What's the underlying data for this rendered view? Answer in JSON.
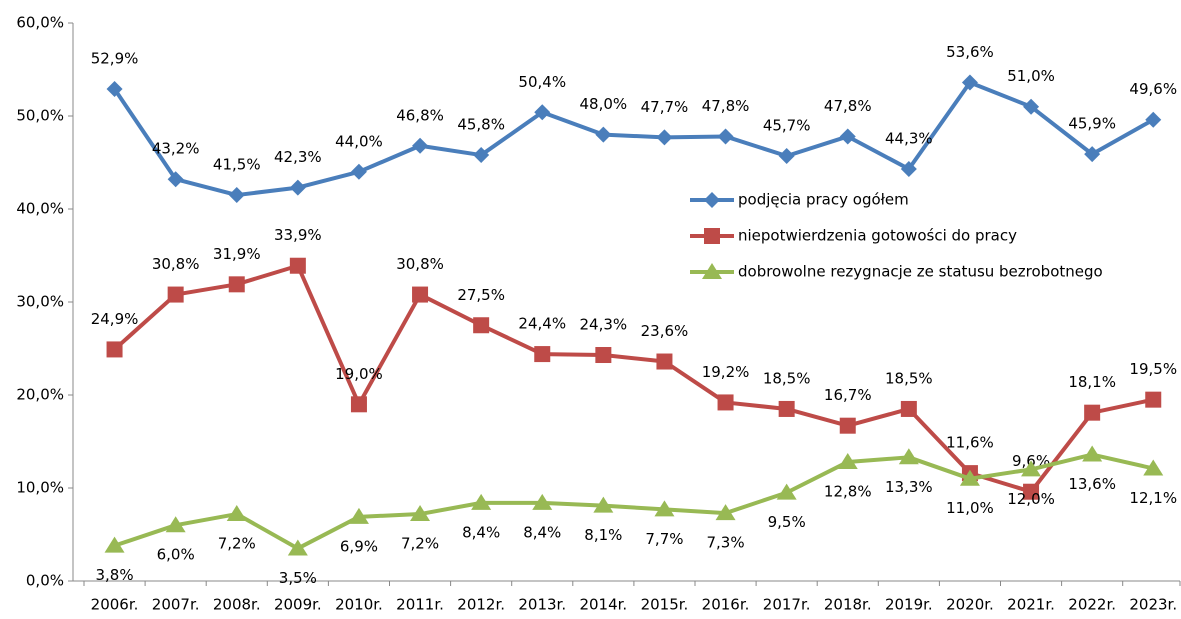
{
  "chart_data": {
    "type": "line",
    "categories": [
      "2006r.",
      "2007r.",
      "2008r.",
      "2009r.",
      "2010r.",
      "2011r.",
      "2012r.",
      "2013r.",
      "2014r.",
      "2015r.",
      "2016r.",
      "2017r.",
      "2018r.",
      "2019r.",
      "2020r.",
      "2021r.",
      "2022r.",
      "2023r."
    ],
    "series": [
      {
        "name": "podjęcia pracy ogółem",
        "color": "#4a7ebb",
        "marker": "diamond",
        "values": [
          52.9,
          43.2,
          41.5,
          42.3,
          44.0,
          46.8,
          45.8,
          50.4,
          48.0,
          47.7,
          47.8,
          45.7,
          47.8,
          44.3,
          53.6,
          51.0,
          45.9,
          49.6
        ],
        "value_labels": [
          "52,9%",
          "43,2%",
          "41,5%",
          "42,3%",
          "44,0%",
          "46,8%",
          "45,8%",
          "50,4%",
          "48,0%",
          "47,7%",
          "47,8%",
          "45,7%",
          "47,8%",
          "44,3%",
          "53,6%",
          "51,0%",
          "45,9%",
          "49,6%"
        ]
      },
      {
        "name": "niepotwierdzenia gotowości do pracy",
        "color": "#be4b48",
        "marker": "square",
        "values": [
          24.9,
          30.8,
          31.9,
          33.9,
          19.0,
          30.8,
          27.5,
          24.4,
          24.3,
          23.6,
          19.2,
          18.5,
          16.7,
          18.5,
          11.6,
          9.6,
          18.1,
          19.5
        ],
        "value_labels": [
          "24,9%",
          "30,8%",
          "31,9%",
          "33,9%",
          "19,0%",
          "30,8%",
          "27,5%",
          "24,4%",
          "24,3%",
          "23,6%",
          "19,2%",
          "18,5%",
          "16,7%",
          "18,5%",
          "11,6%",
          "9,6%",
          "18,1%",
          "19,5%"
        ]
      },
      {
        "name": "dobrowolne rezygnacje ze statusu bezrobotnego",
        "color": "#98b954",
        "marker": "triangle",
        "values": [
          3.8,
          6.0,
          7.2,
          3.5,
          6.9,
          7.2,
          8.4,
          8.4,
          8.1,
          7.7,
          7.3,
          9.5,
          12.8,
          13.3,
          11.0,
          12.0,
          13.6,
          12.1
        ],
        "value_labels": [
          "3,8%",
          "6,0%",
          "7,2%",
          "3,5%",
          "6,9%",
          "7,2%",
          "8,4%",
          "8,4%",
          "8,1%",
          "7,7%",
          "7,3%",
          "9,5%",
          "12,8%",
          "13,3%",
          "11,0%",
          "12,0%",
          "13,6%",
          "12,1%"
        ]
      }
    ],
    "ylim": [
      0,
      60
    ],
    "yticks": [
      {
        "value": 0,
        "label": "0,0%"
      },
      {
        "value": 10,
        "label": "10,0%"
      },
      {
        "value": 20,
        "label": "20,0%"
      },
      {
        "value": 30,
        "label": "30,0%"
      },
      {
        "value": 40,
        "label": "40,0%"
      },
      {
        "value": 50,
        "label": "50,0%"
      },
      {
        "value": 60,
        "label": "60,0%"
      }
    ],
    "grid": false,
    "legend": "center right"
  }
}
